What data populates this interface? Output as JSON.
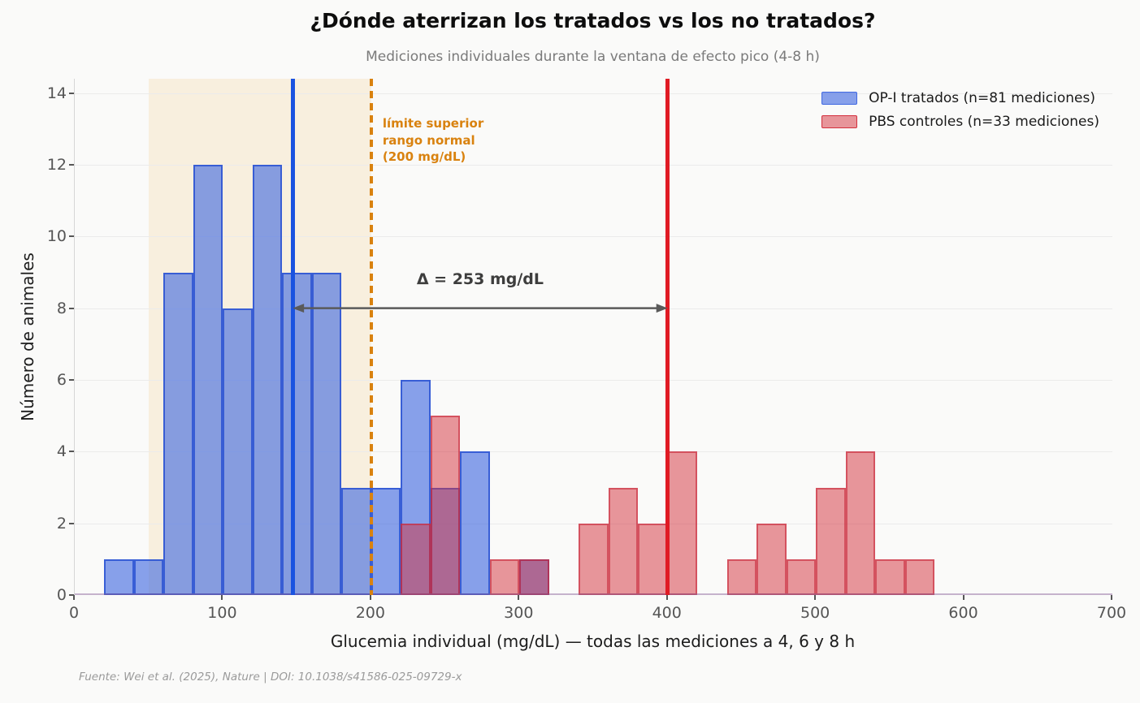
{
  "chart_data": {
    "type": "histogram",
    "title": "¿Dónde aterrizan los tratados vs los no tratados?",
    "subtitle": "Mediciones individuales durante la ventana de efecto pico (4-8 h)",
    "xlabel": "Glucemia individual (mg/dL) — todas las mediciones a 4, 6 y 8 h",
    "ylabel": "Número de animales",
    "xlim": [
      0,
      700
    ],
    "ylim": [
      0,
      14.4
    ],
    "x_ticks": [
      0,
      100,
      200,
      300,
      400,
      500,
      600,
      700
    ],
    "y_ticks": [
      0,
      2,
      4,
      6,
      8,
      10,
      12,
      14
    ],
    "grid": "horizontal",
    "bin_width": 20,
    "series": [
      {
        "name": "OP-I tratados (n=81 mediciones)",
        "n": 81,
        "color": "#4169E1",
        "bin_starts": [
          20,
          40,
          60,
          80,
          100,
          120,
          140,
          160,
          180,
          200,
          220,
          240,
          260,
          300
        ],
        "counts": [
          1,
          1,
          9,
          12,
          8,
          12,
          9,
          9,
          3,
          3,
          6,
          3,
          4,
          1
        ]
      },
      {
        "name": "PBS controles (n=33 mediciones)",
        "n": 33,
        "color": "#D32F3C",
        "bin_starts": [
          220,
          240,
          280,
          300,
          340,
          360,
          380,
          400,
          440,
          460,
          480,
          500,
          520,
          540,
          560
        ],
        "counts": [
          2,
          5,
          1,
          1,
          2,
          3,
          2,
          4,
          1,
          2,
          1,
          3,
          4,
          1,
          1
        ]
      }
    ],
    "normal_band": {
      "from": 50,
      "to": 200,
      "color": "#F5DEB3"
    },
    "vlines": [
      {
        "id": "treated-mean",
        "x": 147,
        "color": "#1A53E0",
        "style": "solid",
        "width": 5
      },
      {
        "id": "control-mean",
        "x": 400,
        "color": "#E01B24",
        "style": "solid",
        "width": 5
      },
      {
        "id": "normal-upper-limit",
        "x": 200,
        "color": "#D9820F",
        "style": "dashed",
        "width": 3.5
      }
    ],
    "annotations": {
      "limit_label": "límite superior\nrango normal\n(200 mg/dL)",
      "limit_color": "#D9820F",
      "delta_label": "Δ = 253 mg/dL",
      "delta_arrow": {
        "from_x": 147,
        "to_x": 400,
        "y": 8,
        "color": "#5a5a5a"
      }
    },
    "legend_position": "top-right",
    "footer": "Fuente: Wei et al. (2025), Nature | DOI: 10.1038/s41586-025-09729-x"
  }
}
